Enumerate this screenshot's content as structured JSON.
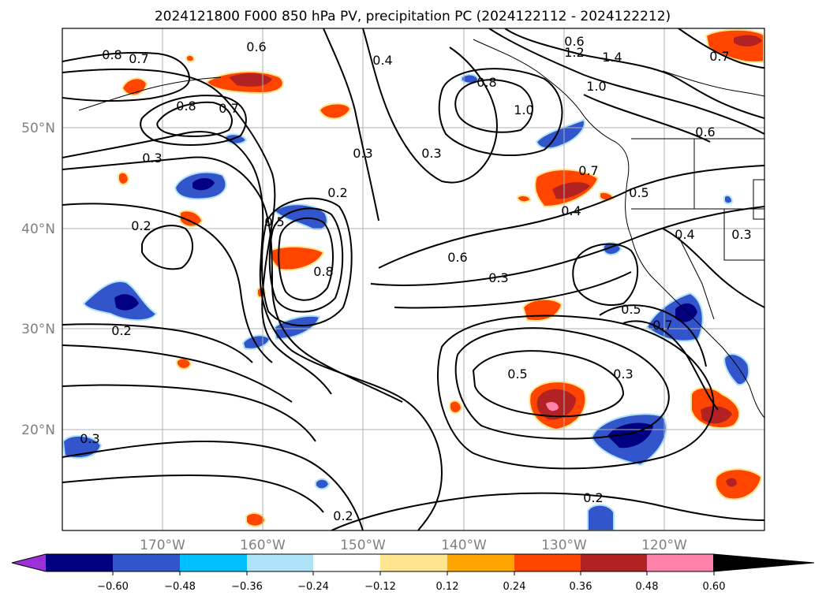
{
  "title": "2024121800 F000 850 hPa PV, precipitation PC (2024122112 - 2024122212)",
  "map": {
    "lon_ticks": [
      "170°W",
      "160°W",
      "150°W",
      "140°W",
      "130°W",
      "120°W"
    ],
    "lat_ticks": [
      "50°N",
      "40°N",
      "30°N",
      "20°N"
    ]
  },
  "colorbar": {
    "tick_labels": [
      "−0.60",
      "−0.48",
      "−0.36",
      "−0.24",
      "−0.12",
      "0.12",
      "0.24",
      "0.36",
      "0.48",
      "0.60"
    ],
    "colors": [
      "#9b30d9",
      "#000080",
      "#3355cc",
      "#00bfff",
      "#aee3f7",
      "#ffffff",
      "#ffe58f",
      "#ffa500",
      "#ff4500",
      "#b22222",
      "#ff82ab"
    ]
  },
  "contour_labels": [
    {
      "text": "0.8"
    },
    {
      "text": "0.7"
    },
    {
      "text": "0.6"
    },
    {
      "text": "0.4"
    },
    {
      "text": "1.2"
    },
    {
      "text": "1.4"
    },
    {
      "text": "0.8"
    },
    {
      "text": "1.0"
    },
    {
      "text": "1.0"
    },
    {
      "text": "0.6"
    },
    {
      "text": "0.7"
    },
    {
      "text": "0.8"
    },
    {
      "text": "0.7"
    },
    {
      "text": "0.3"
    },
    {
      "text": "0.3"
    },
    {
      "text": "0.6"
    },
    {
      "text": "0.3"
    },
    {
      "text": "0.2"
    },
    {
      "text": "0.7"
    },
    {
      "text": "0.5"
    },
    {
      "text": "0.4"
    },
    {
      "text": "0.2"
    },
    {
      "text": "0.5"
    },
    {
      "text": "0.4"
    },
    {
      "text": "0.3"
    },
    {
      "text": "0.8"
    },
    {
      "text": "0.6"
    },
    {
      "text": "0.3"
    },
    {
      "text": "0.5"
    },
    {
      "text": "0.7"
    },
    {
      "text": "0.2"
    },
    {
      "text": "0.5"
    },
    {
      "text": "0.3"
    },
    {
      "text": "0.3"
    },
    {
      "text": "0.2"
    },
    {
      "text": "0.2"
    }
  ]
}
